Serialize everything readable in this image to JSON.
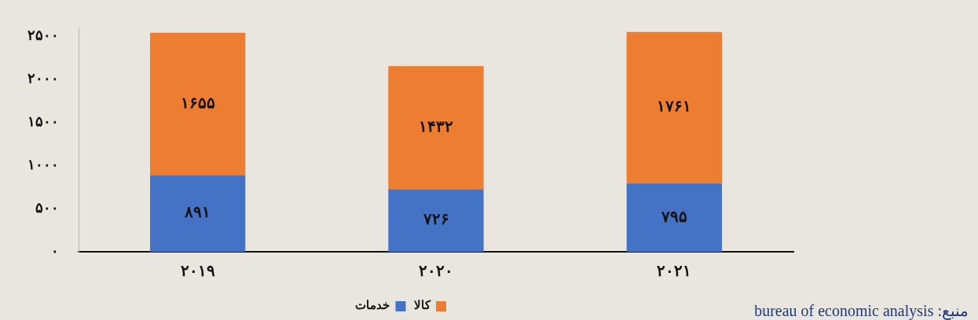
{
  "chart_data": {
    "type": "bar",
    "stacked": true,
    "categories": [
      "۲۰۱۹",
      "۲۰۲۰",
      "۲۰۲۱"
    ],
    "series": [
      {
        "name": "خدمات",
        "color": "#4472c4",
        "values": [
          891,
          726,
          795
        ],
        "value_labels": [
          "۸۹۱",
          "۷۲۶",
          "۷۹۵"
        ]
      },
      {
        "name": "کالا",
        "color": "#ed7d31",
        "values": [
          1655,
          1432,
          1761
        ],
        "value_labels": [
          "۱۶۵۵",
          "۱۴۳۲",
          "۱۷۶۱"
        ]
      }
    ],
    "ylim": [
      0,
      2600
    ],
    "yticks": [
      {
        "value": 0,
        "label": "۰"
      },
      {
        "value": 500,
        "label": "۵۰۰"
      },
      {
        "value": 1000,
        "label": "۱۰۰۰"
      },
      {
        "value": 1500,
        "label": "۱۵۰۰"
      },
      {
        "value": 2000,
        "label": "۲۰۰۰"
      },
      {
        "value": 2500,
        "label": "۲۵۰۰"
      }
    ],
    "grid": false,
    "legend": "bottom",
    "annotations": [
      "منبع: bureau of economic analysis"
    ]
  }
}
